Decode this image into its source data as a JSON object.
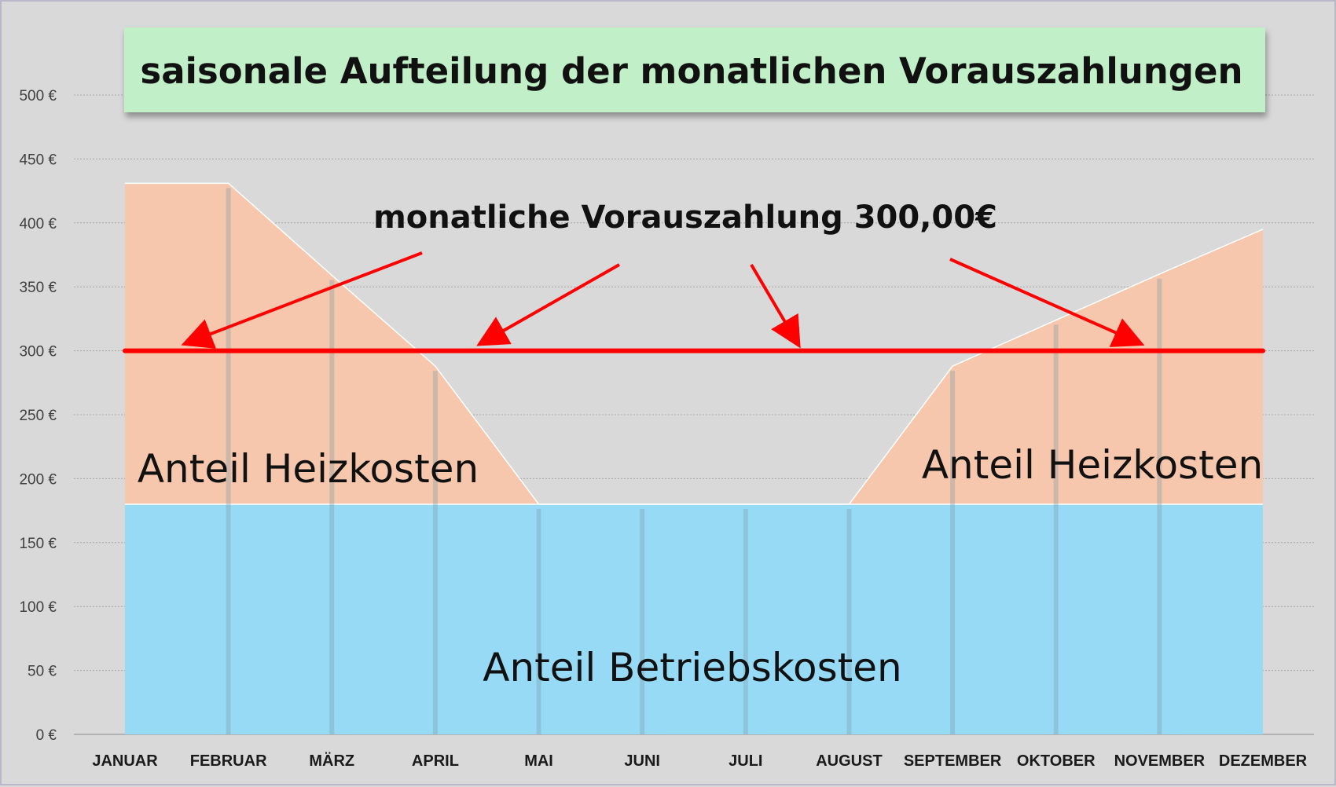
{
  "chart_data": {
    "type": "area",
    "title": "saisonale Aufteilung der monatlichen Vorauszahlungen",
    "categories": [
      "JANUAR",
      "FEBRUAR",
      "MÄRZ",
      "APRIL",
      "MAI",
      "JUNI",
      "JULI",
      "AUGUST",
      "SEPTEMBER",
      "OKTOBER",
      "NOVEMBER",
      "DEZEMBER"
    ],
    "stacked": true,
    "series": [
      {
        "key": "betrieb",
        "values": [
          180,
          180,
          180,
          180,
          180,
          180,
          180,
          180,
          180,
          180,
          180,
          180
        ],
        "color": "#97daf6"
      },
      {
        "key": "heiz",
        "values": [
          251,
          251,
          179,
          108,
          0,
          0,
          0,
          0,
          108,
          144,
          180,
          215
        ],
        "color": "#f6c7ac"
      }
    ],
    "reference_line": {
      "value": 300,
      "color": "#ff0000"
    },
    "ylim": [
      0,
      500
    ],
    "yticks": [
      {
        "value": 0,
        "label": "0 €"
      },
      {
        "value": 50,
        "label": "50 €"
      },
      {
        "value": 100,
        "label": "100 €"
      },
      {
        "value": 150,
        "label": "150 €"
      },
      {
        "value": 200,
        "label": "200 €"
      },
      {
        "value": 250,
        "label": "250 €"
      },
      {
        "value": 300,
        "label": "300 €"
      },
      {
        "value": 350,
        "label": "350 €"
      },
      {
        "value": 400,
        "label": "400 €"
      },
      {
        "value": 450,
        "label": "450 €"
      },
      {
        "value": 500,
        "label": "500 €"
      }
    ],
    "grid": true,
    "annotations": {
      "heiz_left": "Anteil Heizkosten",
      "heiz_right": "Anteil Heizkosten",
      "betrieb": "Anteil Betriebskosten",
      "callout": "monatliche Vorauszahlung  300,00€"
    },
    "callout_targets": [
      "FEBRUAR",
      "MAI",
      "JULI",
      "NOVEMBER"
    ]
  },
  "colors": {
    "background": "#d9d9d9",
    "title_box": "#c1f0c8",
    "arrow": "#ff0000"
  }
}
